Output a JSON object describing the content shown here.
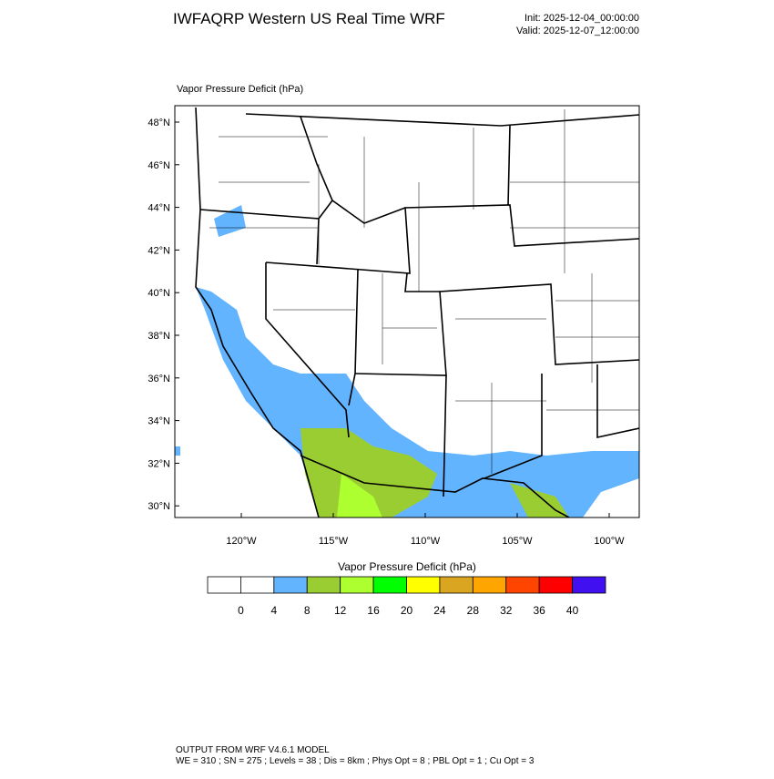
{
  "header": {
    "title": "IWFAQRP Western US Real Time WRF",
    "init": "Init: 2025-12-04_00:00:00",
    "valid": "Valid: 2025-12-07_12:00:00"
  },
  "panel": {
    "title": "Vapor Pressure Deficit   (hPa)",
    "lat_labels": [
      "48°N",
      "46°N",
      "44°N",
      "42°N",
      "40°N",
      "38°N",
      "36°N",
      "34°N",
      "32°N",
      "30°N"
    ],
    "lon_labels": [
      "120°W",
      "115°W",
      "110°W",
      "105°W",
      "100°W"
    ]
  },
  "colorbar": {
    "title": "Vapor Pressure Deficit  (hPa)",
    "levels": [
      0,
      4,
      8,
      12,
      16,
      20,
      24,
      28,
      32,
      36,
      40
    ],
    "colors": [
      "#ffffff",
      "#ffffff",
      "#63b4ff",
      "#9acd32",
      "#adff2f",
      "#00ff00",
      "#ffff00",
      "#daa520",
      "#ffa500",
      "#ff4500",
      "#ff0000",
      "#4010f0"
    ]
  },
  "footer": {
    "line1": "OUTPUT FROM WRF V4.6.1 MODEL",
    "line2": "WE = 310 ; SN = 275 ; Levels = 38 ; Dis = 8km ; Phys Opt = 8 ; PBL Opt = 1 ; Cu Opt = 3"
  }
}
